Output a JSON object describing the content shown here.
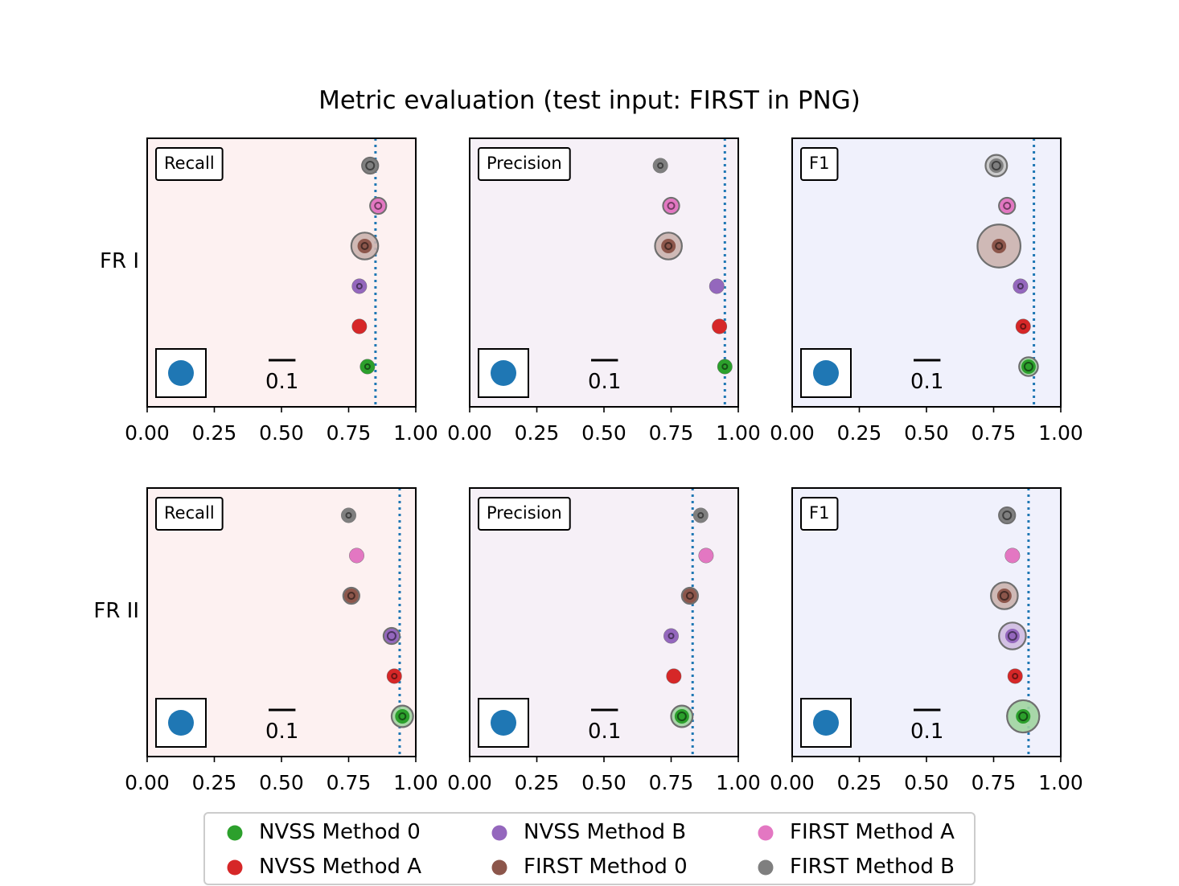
{
  "chart_data": {
    "type": "scatter",
    "title": "Metric evaluation (test input: FIRST in PNG)",
    "x_ticks": [
      "0.00",
      "0.25",
      "0.50",
      "0.75",
      "1.00"
    ],
    "xlim": [
      0,
      1
    ],
    "scale_label": "0.1",
    "rows": [
      "FR I",
      "FR II"
    ],
    "columns": [
      {
        "metric": "Recall",
        "bg": "#fdf1f1"
      },
      {
        "metric": "Precision",
        "bg": "#f6f0f7"
      },
      {
        "metric": "F1",
        "bg": "#f0f1fc"
      }
    ],
    "series_order": [
      "NVSS Method 0",
      "NVSS Method A",
      "NVSS Method B",
      "FIRST Method 0",
      "FIRST Method A",
      "FIRST Method B"
    ],
    "series_colors": [
      "#2ca02c",
      "#d62728",
      "#9467bd",
      "#8c564b",
      "#e377c2",
      "#7f7f7f"
    ],
    "reference_color": "#1f77b4",
    "panels": [
      {
        "row": "FR I",
        "metric": "Recall",
        "reference": 0.85,
        "values": [
          0.82,
          0.79,
          0.79,
          0.81,
          0.86,
          0.83
        ],
        "uncertainty": [
          0.025,
          0.025,
          0.025,
          0.05,
          0.03,
          0.03
        ],
        "inner": [
          0.015,
          0.01,
          0.015,
          0.02,
          0.02,
          0.025
        ]
      },
      {
        "row": "FR I",
        "metric": "Precision",
        "reference": 0.95,
        "values": [
          0.95,
          0.93,
          0.92,
          0.74,
          0.75,
          0.71
        ],
        "uncertainty": [
          0.025,
          0.025,
          0.025,
          0.05,
          0.03,
          0.025
        ],
        "inner": [
          0.015,
          0.01,
          0.01,
          0.02,
          0.02,
          0.015
        ]
      },
      {
        "row": "FR I",
        "metric": "F1",
        "reference": 0.9,
        "values": [
          0.88,
          0.86,
          0.85,
          0.77,
          0.8,
          0.76
        ],
        "uncertainty": [
          0.035,
          0.025,
          0.025,
          0.08,
          0.03,
          0.04
        ],
        "inner": [
          0.025,
          0.015,
          0.015,
          0.02,
          0.02,
          0.025
        ]
      },
      {
        "row": "FR II",
        "metric": "Recall",
        "reference": 0.94,
        "values": [
          0.95,
          0.92,
          0.91,
          0.76,
          0.78,
          0.75
        ],
        "uncertainty": [
          0.04,
          0.025,
          0.03,
          0.03,
          0.025,
          0.025
        ],
        "inner": [
          0.02,
          0.015,
          0.025,
          0.02,
          0.01,
          0.015
        ]
      },
      {
        "row": "FR II",
        "metric": "Precision",
        "reference": 0.83,
        "values": [
          0.79,
          0.76,
          0.75,
          0.82,
          0.88,
          0.86
        ],
        "uncertainty": [
          0.04,
          0.025,
          0.025,
          0.03,
          0.025,
          0.025
        ],
        "inner": [
          0.025,
          0.01,
          0.015,
          0.02,
          0.005,
          0.015
        ]
      },
      {
        "row": "FR II",
        "metric": "F1",
        "reference": 0.88,
        "values": [
          0.86,
          0.83,
          0.82,
          0.79,
          0.82,
          0.8
        ],
        "uncertainty": [
          0.06,
          0.025,
          0.05,
          0.05,
          0.025,
          0.03
        ],
        "inner": [
          0.025,
          0.015,
          0.025,
          0.025,
          0.01,
          0.025
        ]
      }
    ],
    "legend": {
      "placement": "bottom-center",
      "columns": 3,
      "entries": [
        "NVSS Method 0",
        "NVSS Method A",
        "NVSS Method B",
        "FIRST Method 0",
        "FIRST Method A",
        "FIRST Method B"
      ]
    }
  }
}
